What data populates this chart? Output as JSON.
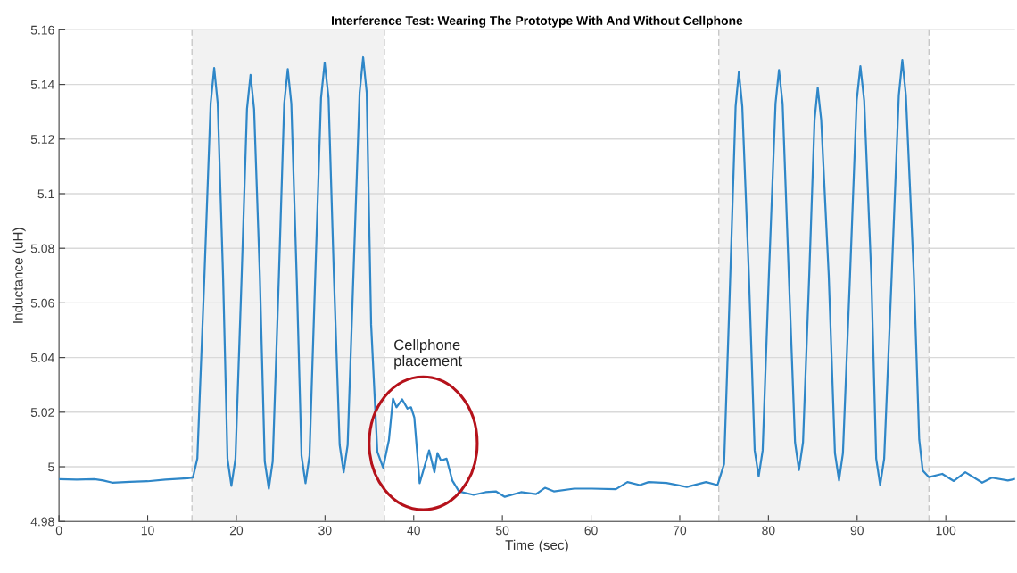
{
  "chart_data": {
    "type": "line",
    "title": "Interference Test: Wearing The Prototype With And Without Cellphone",
    "xlabel": "Time (sec)",
    "ylabel": "Inductance (uH)",
    "xlim": [
      0,
      107.8
    ],
    "ylim": [
      4.98,
      5.16
    ],
    "xticks": [
      0,
      10,
      20,
      30,
      40,
      50,
      60,
      70,
      80,
      90,
      100
    ],
    "yticks": [
      4.98,
      5,
      5.02,
      5.04,
      5.06,
      5.08,
      5.1,
      5.12,
      5.14,
      5.16
    ],
    "grid": "y",
    "legend": false,
    "marker": "none",
    "line_style": "solid",
    "bands": [
      {
        "axis": "x",
        "from": 15,
        "to": 36.7,
        "color": "#f2f2f2"
      },
      {
        "axis": "x",
        "from": 74.4,
        "to": 98.1,
        "color": "#f2f2f2"
      }
    ],
    "annotations": [
      "Cellphone\nplacement"
    ],
    "series": [
      {
        "color": "#2f87c8",
        "x": [
          0,
          2,
          4,
          5,
          6,
          8,
          10,
          12,
          14.5,
          15.1,
          15.6,
          16.4,
          17.1,
          17.5,
          17.9,
          18.5,
          19.0,
          19.44,
          19.9,
          20.6,
          21.2,
          21.6,
          22.0,
          22.65,
          23.2,
          23.66,
          24.1,
          24.8,
          25.4,
          25.8,
          26.2,
          26.8,
          27.35,
          27.8,
          28.25,
          28.9,
          29.55,
          29.96,
          30.4,
          31.0,
          31.65,
          32.1,
          32.55,
          33.2,
          33.9,
          34.3,
          34.7,
          35.2,
          35.9,
          36.55,
          37.2,
          37.66,
          38.06,
          38.7,
          39.3,
          39.7,
          40.07,
          40.67,
          41.74,
          42.34,
          42.68,
          43.08,
          43.7,
          44.35,
          45.1,
          46.76,
          48.1,
          49.26,
          50.27,
          52.1,
          53.8,
          54.8,
          55.8,
          58.1,
          60.1,
          62.8,
          64.1,
          65.5,
          66.5,
          68.5,
          70.8,
          72.96,
          74.26,
          75.0,
          75.6,
          76.3,
          76.67,
          77.05,
          77.8,
          78.45,
          78.9,
          79.35,
          80.05,
          80.8,
          81.19,
          81.6,
          82.3,
          83.0,
          83.44,
          83.9,
          84.6,
          85.2,
          85.56,
          85.95,
          86.8,
          87.5,
          87.96,
          88.4,
          89.2,
          89.95,
          90.37,
          90.8,
          91.6,
          92.15,
          92.6,
          93.05,
          93.9,
          94.7,
          95.1,
          95.5,
          96.4,
          97.0,
          97.4,
          98.1,
          99.6,
          100.9,
          102.2,
          104.1,
          105.2,
          107.0,
          107.8
        ],
        "values": [
          4.9955,
          4.9953,
          4.9955,
          4.995,
          4.9942,
          4.9945,
          4.9947,
          4.9953,
          4.9958,
          4.996,
          5.003,
          5.07,
          5.133,
          5.146,
          5.133,
          5.07,
          5.003,
          4.993,
          5.003,
          5.07,
          5.131,
          5.1435,
          5.131,
          5.07,
          5.002,
          4.992,
          5.002,
          5.07,
          5.133,
          5.1456,
          5.133,
          5.07,
          5.004,
          4.994,
          5.004,
          5.07,
          5.135,
          5.148,
          5.135,
          5.07,
          5.008,
          4.998,
          5.008,
          5.07,
          5.137,
          5.15,
          5.137,
          5.052,
          5.0055,
          4.9997,
          5.0097,
          5.025,
          5.0218,
          5.0247,
          5.0213,
          5.0218,
          5.018,
          4.994,
          5.006,
          4.998,
          5.005,
          5.0023,
          5.003,
          4.995,
          4.991,
          4.9897,
          4.9907,
          4.991,
          4.989,
          4.9907,
          4.99,
          4.9923,
          4.991,
          4.992,
          4.992,
          4.9918,
          4.9944,
          4.9933,
          4.9944,
          4.9941,
          4.9926,
          4.9944,
          4.9933,
          5.001,
          5.06,
          5.132,
          5.1447,
          5.132,
          5.07,
          5.006,
          4.9965,
          5.006,
          5.07,
          5.133,
          5.1453,
          5.133,
          5.07,
          5.009,
          4.9988,
          5.009,
          5.07,
          5.127,
          5.1388,
          5.127,
          5.07,
          5.005,
          4.995,
          5.005,
          5.07,
          5.134,
          5.1467,
          5.134,
          5.07,
          5.003,
          4.9933,
          5.003,
          5.07,
          5.136,
          5.149,
          5.136,
          5.07,
          5.01,
          4.9986,
          4.9962,
          4.9974,
          4.9948,
          4.998,
          4.9942,
          4.996,
          4.995,
          4.9955
        ]
      }
    ]
  }
}
